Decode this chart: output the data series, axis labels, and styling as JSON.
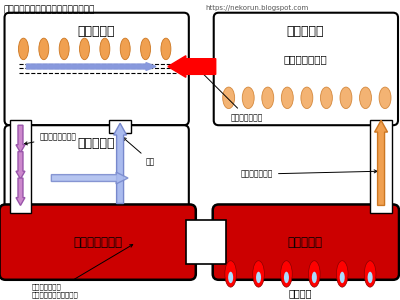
{
  "title": "》プロパンガス式冷蔵庫の構造略図》",
  "title2": "【プロパンガス式冷蔵庫の構造略図】",
  "url": "https://nekorun.blogspot.com",
  "bg_color": "#ffffff",
  "red_fill": "#cc0000",
  "kika_label": "気　化　器",
  "gyoshu_label": "凝　集　器",
  "kyushu_label": "吸　収　器",
  "kanshyo_label": "緩　衝　容　器",
  "hasshu_label": "発　生　器",
  "gas_to_liquid": "気体から液体へ",
  "ammonia_suiso": "アンモニアと水素",
  "liquid_ammonia": "液体アンモニア",
  "gas_ammonia": "気体アンモニア",
  "suiso": "水素",
  "ammonia_solution_l1": "アンモニア溶液",
  "ammonia_solution_l2": "（アンモニアと水など）",
  "boiler": "ボイラー"
}
